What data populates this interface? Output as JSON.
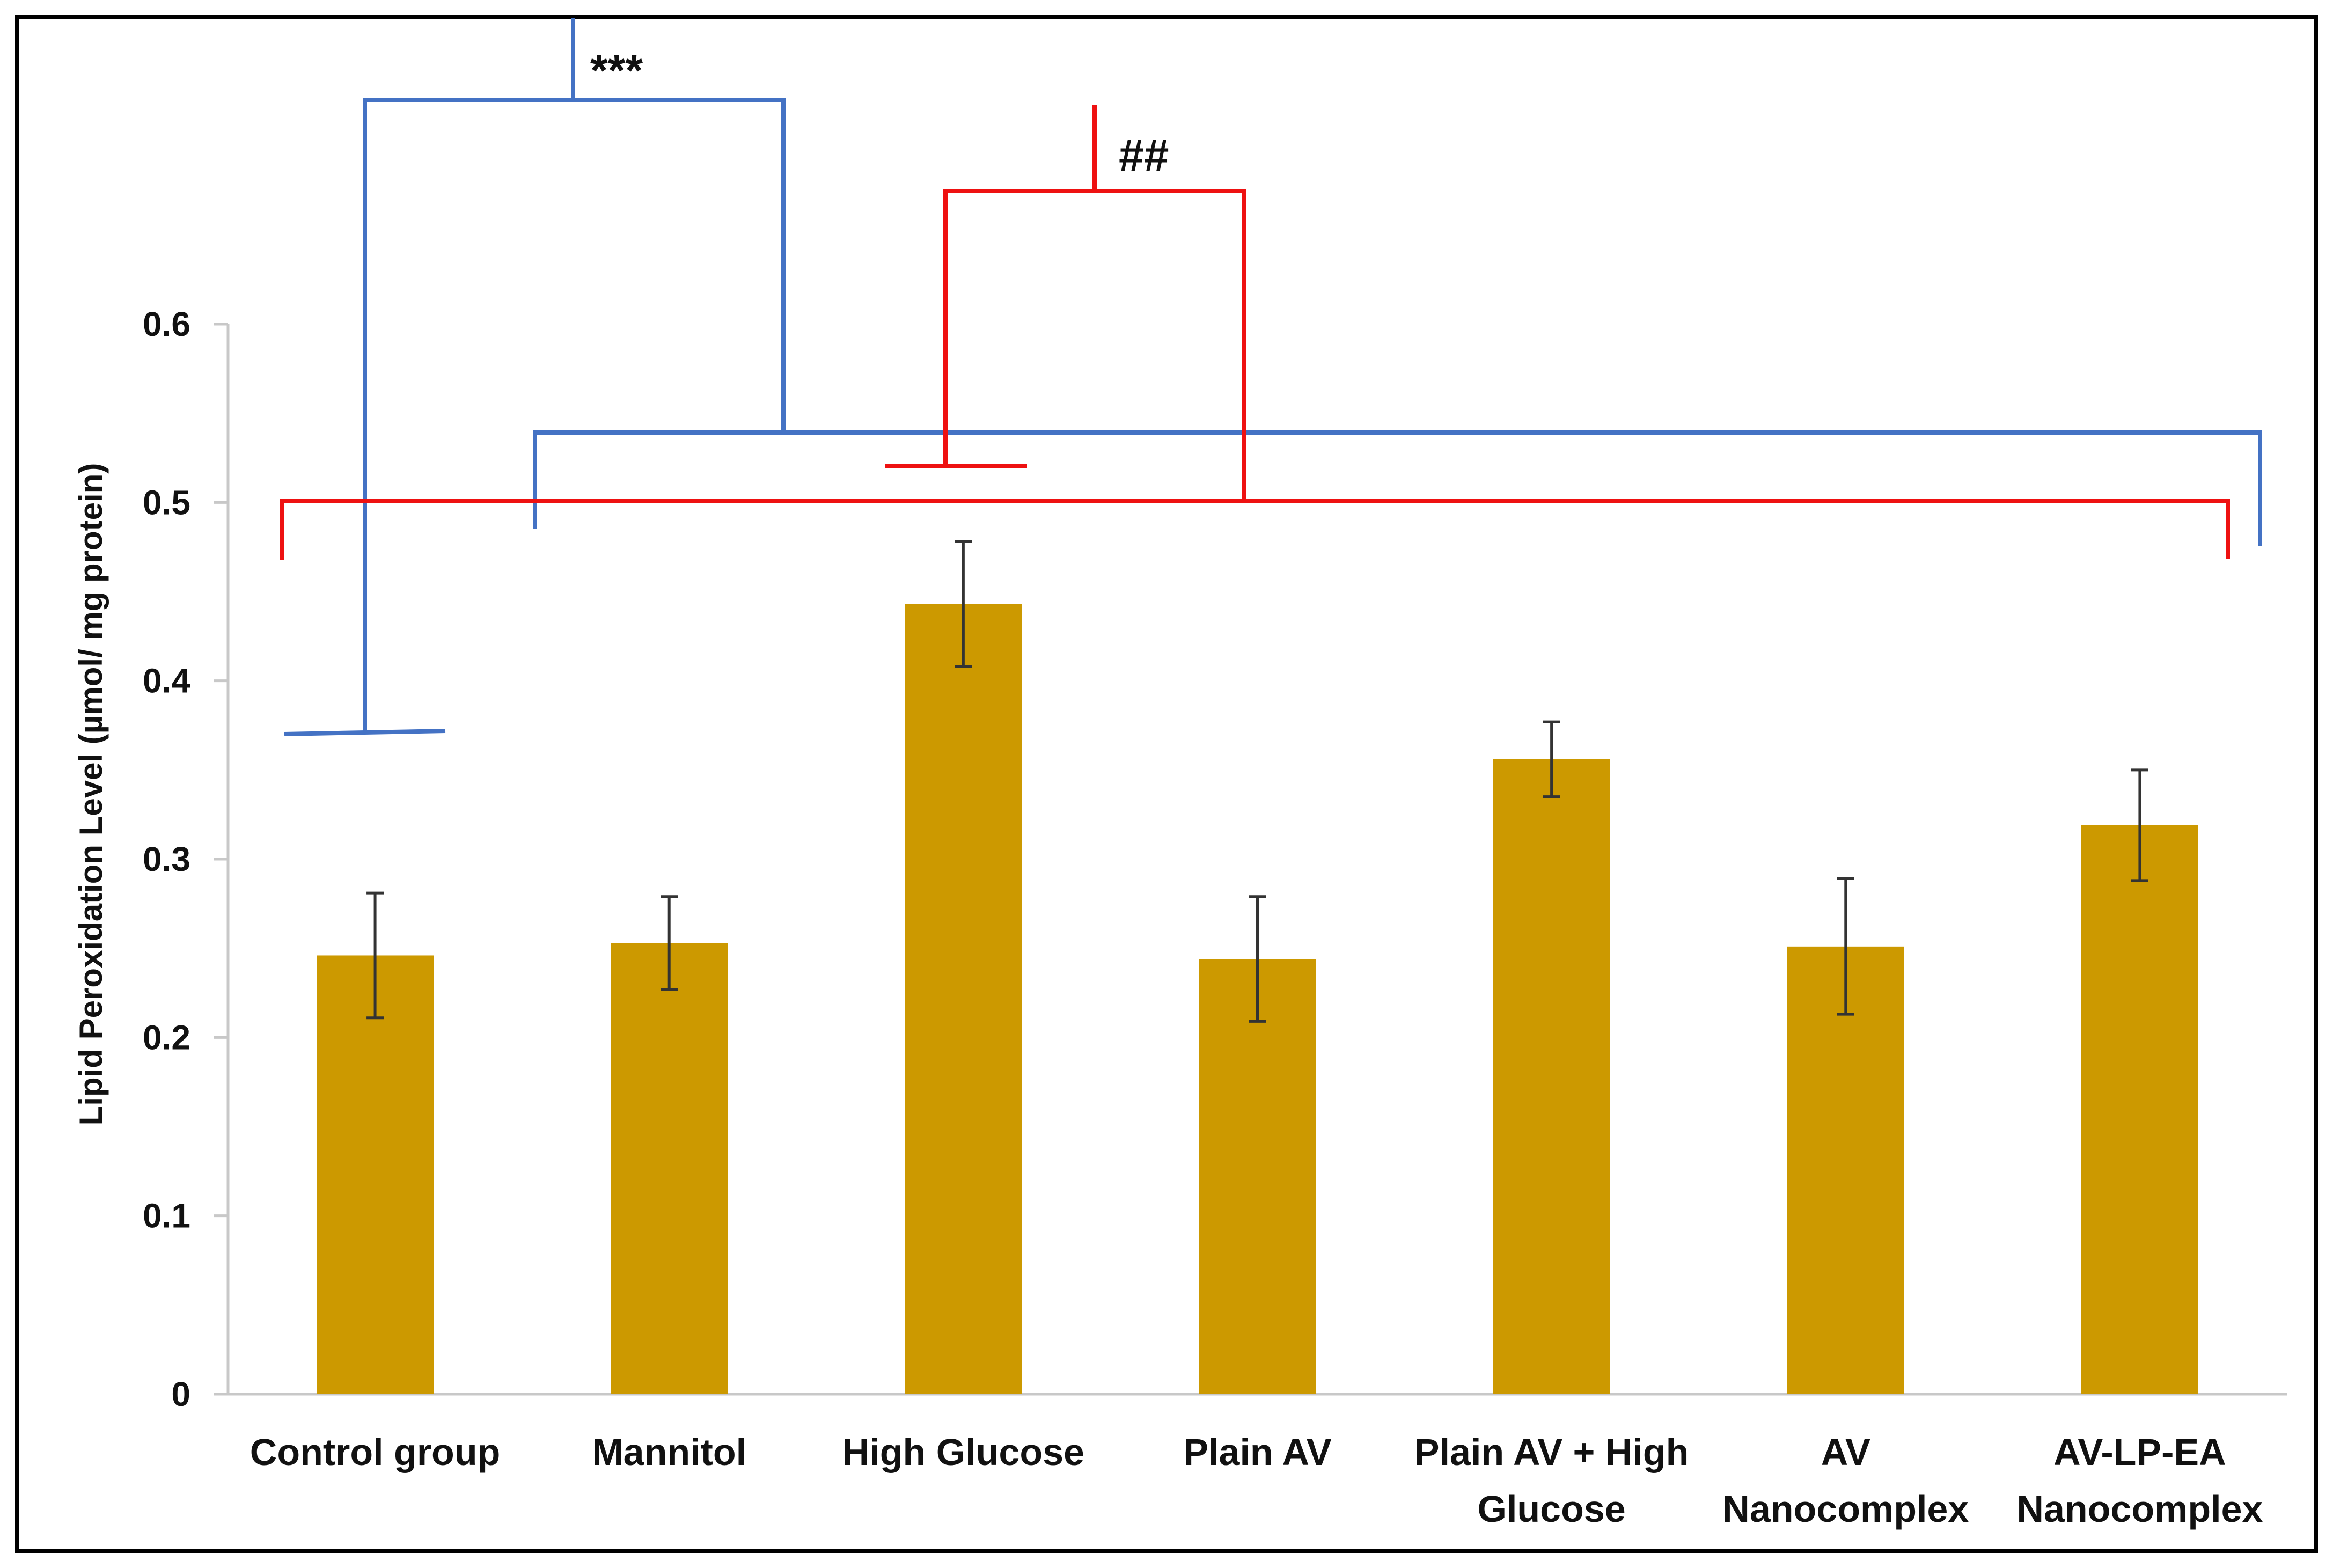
{
  "chart_data": {
    "type": "bar",
    "title": "",
    "xlabel": "",
    "ylabel": "Lipid Peroxidation Level  (µmol/ mg protein)",
    "ylim": [
      0,
      0.6
    ],
    "yticks": [
      "0",
      "0.1",
      "0.2",
      "0.3",
      "0.4",
      "0.5",
      "0.6"
    ],
    "grid": false,
    "legend": "none",
    "categories": [
      [
        "Control group"
      ],
      [
        "Mannitol"
      ],
      [
        "High Glucose"
      ],
      [
        "Plain AV"
      ],
      [
        "Plain AV + High",
        "Glucose"
      ],
      [
        "AV",
        "Nanocomplex"
      ],
      [
        "AV-LP-EA",
        "Nanocomplex"
      ]
    ],
    "values": [
      0.246,
      0.253,
      0.443,
      0.244,
      0.356,
      0.251,
      0.319
    ],
    "errors": [
      0.035,
      0.026,
      0.035,
      0.035,
      0.021,
      0.038,
      0.031
    ],
    "bar_color": "#CC9900",
    "error_color": "#333333",
    "annotations": {
      "blue_significance": "***",
      "red_significance": "##",
      "blue_color": "#4472C4",
      "red_color": "#EE1111"
    }
  }
}
